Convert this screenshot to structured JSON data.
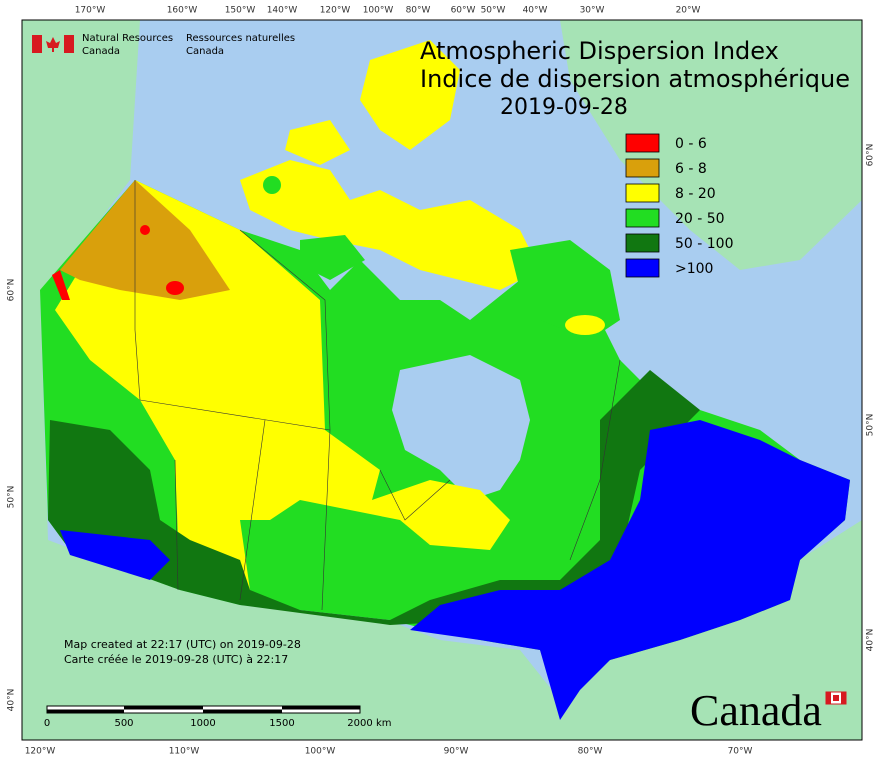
{
  "header": {
    "agency_en": [
      "Natural Resources",
      "Canada"
    ],
    "agency_fr": [
      "Ressources naturelles",
      "Canada"
    ]
  },
  "title": {
    "en": "Atmospheric Dispersion Index",
    "fr": "Indice de dispersion atmosphérique",
    "date": "2019-09-28"
  },
  "legend": [
    {
      "label": "0 - 6",
      "color": "#ff0000"
    },
    {
      "label": "6 - 8",
      "color": "#d9a00c"
    },
    {
      "label": "8 - 20",
      "color": "#ffff00"
    },
    {
      "label": "20 - 50",
      "color": "#22dd22"
    },
    {
      "label": "50 - 100",
      "color": "#117711"
    },
    {
      "label": ">100",
      "color": "#0000ff"
    }
  ],
  "top_axis_labels": [
    "170°W",
    "160°W",
    "150°W",
    "140°W",
    "120°W",
    "100°W",
    "80°W",
    "60°W",
    "50°W",
    "40°W",
    "30°W",
    "20°W"
  ],
  "bottom_axis_labels": [
    "120°W",
    "110°W",
    "100°W",
    "90°W",
    "80°W",
    "70°W"
  ],
  "left_axis_labels": [
    "60°N",
    "50°N",
    "40°N"
  ],
  "right_axis_labels": [
    "60°N",
    "50°N",
    "40°N"
  ],
  "notes": [
    "Map created at 22:17 (UTC) on 2019-09-28",
    "Carte créée le 2019-09-28 (UTC) à 22:17"
  ],
  "scale_bar": {
    "ticks": [
      "0",
      "500",
      "1000",
      "1500",
      "2000"
    ],
    "unit": "km"
  },
  "wordmark": "Canada"
}
